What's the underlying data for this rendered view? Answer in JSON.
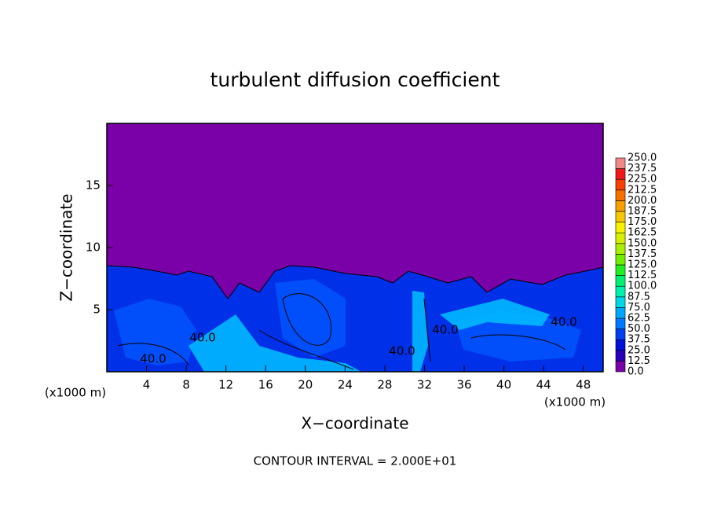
{
  "chart_data": {
    "type": "contour",
    "title": "turbulent diffusion coefficient",
    "xlabel": "X−coordinate",
    "ylabel": "Z−coordinate",
    "x_unit": "(x1000 m)",
    "y_unit": "(x1000 m)",
    "footer": "CONTOUR INTERVAL = 2.000E+01",
    "xlim": [
      0,
      50
    ],
    "xticks": [
      4,
      8,
      12,
      16,
      20,
      24,
      28,
      32,
      36,
      40,
      44,
      48
    ],
    "ylim": [
      0,
      20
    ],
    "yticks": [
      5,
      10,
      15
    ],
    "contour_labels": [
      "40.0",
      "40.0",
      "40.0",
      "40.0",
      "40.0"
    ],
    "colorbar": {
      "levels": [
        {
          "value": 0,
          "label": "0.0"
        },
        {
          "value": 12.5,
          "label": "12.5"
        },
        {
          "value": 25,
          "label": "25.0"
        },
        {
          "value": 37.5,
          "label": "37.5"
        },
        {
          "value": 50,
          "label": "50.0"
        },
        {
          "value": 62.5,
          "label": "62.5"
        },
        {
          "value": 75,
          "label": "75.0"
        },
        {
          "value": 87.5,
          "label": "87.5"
        },
        {
          "value": 100,
          "label": "100.0"
        },
        {
          "value": 112.5,
          "label": "112.5"
        },
        {
          "value": 125,
          "label": "125.0"
        },
        {
          "value": 137.5,
          "label": "137.5"
        },
        {
          "value": 150,
          "label": "150.0"
        },
        {
          "value": 162.5,
          "label": "162.5"
        },
        {
          "value": 175,
          "label": "175.0"
        },
        {
          "value": 187.5,
          "label": "187.5"
        },
        {
          "value": 200,
          "label": "200.0"
        },
        {
          "value": 212.5,
          "label": "212.5"
        },
        {
          "value": 225,
          "label": "225.0"
        },
        {
          "value": 237.5,
          "label": "237.5"
        },
        {
          "value": 250,
          "label": "250.0"
        }
      ],
      "colors": [
        "#7a00a8",
        "#2a00b8",
        "#0010d8",
        "#0040f0",
        "#0078ff",
        "#00a8ff",
        "#00d8e8",
        "#00f0b0",
        "#00f070",
        "#20f020",
        "#70f000",
        "#a8f000",
        "#d8f000",
        "#f8f000",
        "#f8c800",
        "#f8a000",
        "#f87000",
        "#f84000",
        "#f01818",
        "#f08888"
      ]
    }
  }
}
